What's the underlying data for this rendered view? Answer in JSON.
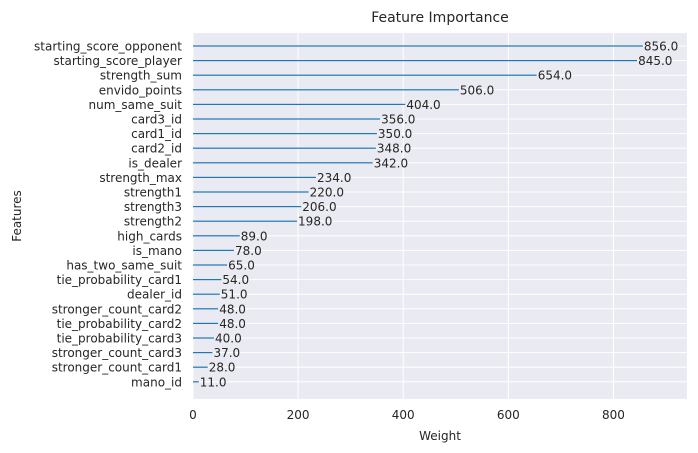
{
  "chart_data": {
    "type": "bar",
    "orientation": "horizontal",
    "title": "Feature Importance",
    "xlabel": "Weight",
    "ylabel": "Features",
    "xlim": [
      0,
      940
    ],
    "xticks": [
      0,
      200,
      400,
      600,
      800
    ],
    "grid": true,
    "bar_color": "#1f77b4",
    "background_color": "#eaeaf2",
    "categories": [
      "starting_score_opponent",
      "starting_score_player",
      "strength_sum",
      "envido_points",
      "num_same_suit",
      "card3_id",
      "card1_id",
      "card2_id",
      "is_dealer",
      "strength_max",
      "strength1",
      "strength3",
      "strength2",
      "high_cards",
      "is_mano",
      "has_two_same_suit",
      "tie_probability_card1",
      "dealer_id",
      "stronger_count_card2",
      "tie_probability_card2",
      "tie_probability_card3",
      "stronger_count_card3",
      "stronger_count_card1",
      "mano_id"
    ],
    "values": [
      856.0,
      845.0,
      654.0,
      506.0,
      404.0,
      356.0,
      350.0,
      348.0,
      342.0,
      234.0,
      220.0,
      206.0,
      198.0,
      89.0,
      78.0,
      65.0,
      54.0,
      51.0,
      48.0,
      48.0,
      40.0,
      37.0,
      28.0,
      11.0
    ],
    "value_labels": [
      "856.0",
      "845.0",
      "654.0",
      "506.0",
      "404.0",
      "356.0",
      "350.0",
      "348.0",
      "342.0",
      "234.0",
      "220.0",
      "206.0",
      "198.0",
      "89.0",
      "78.0",
      "65.0",
      "54.0",
      "51.0",
      "48.0",
      "48.0",
      "40.0",
      "37.0",
      "28.0",
      "11.0"
    ]
  }
}
